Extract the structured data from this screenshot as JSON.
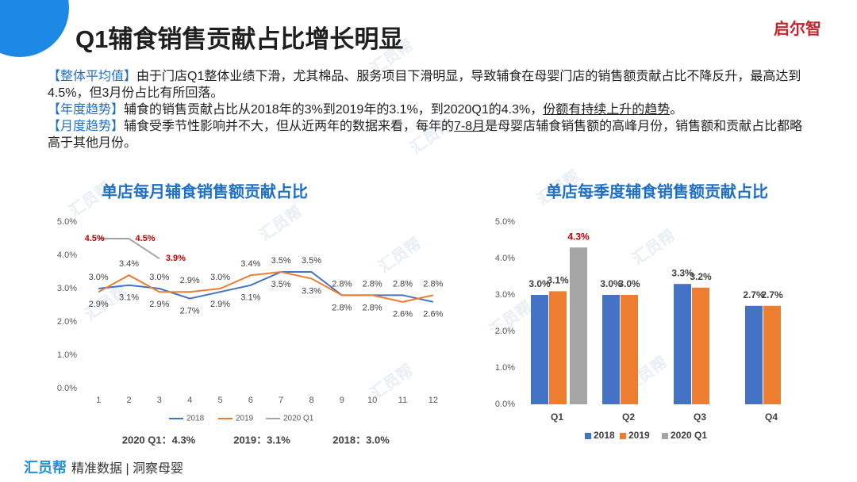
{
  "header": {
    "title": "Q1辅食销售贡献占比增长明显",
    "logo": "启尔智"
  },
  "paragraphs": [
    {
      "label": "【整体平均值】",
      "text": [
        "由于门店Q1整体业绩下滑，尤其棉品、服务项目下滑明显，导致辅食在母婴门店的销售额贡献占比不降反升，最高达到4.5%，但3月份占比有所回落。"
      ]
    },
    {
      "label": "【年度趋势】",
      "text": [
        "辅食的销售贡献占比从2018年的3%到2019年的3.1%，到2020Q1的4.3%，",
        "份额有持续上升的趋势",
        "。"
      ]
    },
    {
      "label": "【月度趋势】",
      "text": [
        "辅食受季节性影响并不大，但从近两年的数据来看，每年的",
        "7-8月",
        "是母婴店辅食销售额的高峰月份，销售额和贡献占比都略高于其他月份。"
      ]
    }
  ],
  "watermark": "汇员帮",
  "footer": {
    "brand": "汇员帮",
    "slogan": "精准数据 | 洞察母婴"
  },
  "chart_data": [
    {
      "type": "line",
      "title": "单店每月辅食销售额贡献占比",
      "categories": [
        "1",
        "2",
        "3",
        "4",
        "5",
        "6",
        "7",
        "8",
        "9",
        "10",
        "11",
        "12"
      ],
      "series": [
        {
          "name": "2018",
          "color": "#4472c4",
          "label_color": "#404040",
          "values": [
            3.0,
            3.1,
            3.0,
            2.7,
            2.9,
            3.1,
            3.5,
            3.5,
            2.8,
            2.8,
            2.8,
            2.6
          ],
          "value_labels": [
            "3.0%",
            "3.1%",
            "3.0%",
            "2.7%",
            "2.9%",
            "3.1%",
            "3.5%",
            "3.5%",
            "2.8%",
            "2.8%",
            "2.8%",
            "2.6%"
          ]
        },
        {
          "name": "2019",
          "color": "#ed7d31",
          "label_color": "#404040",
          "values": [
            2.9,
            3.4,
            2.9,
            2.9,
            3.0,
            3.4,
            3.5,
            3.3,
            2.8,
            2.8,
            2.6,
            2.8
          ],
          "value_labels": [
            "2.9%",
            "3.4%",
            "2.9%",
            "2.9%",
            "3.0%",
            "3.4%",
            "3.5%",
            "3.3%",
            "2.8%",
            "2.8%",
            "2.6%",
            "2.8%"
          ]
        },
        {
          "name": "2020 Q1",
          "color": "#a5a5a5",
          "label_color": "#c00000",
          "values": [
            4.5,
            4.5,
            3.9,
            null,
            null,
            null,
            null,
            null,
            null,
            null,
            null,
            null
          ],
          "value_labels": [
            "4.5%",
            "4.5%",
            "3.9%",
            null,
            null,
            null,
            null,
            null,
            null,
            null,
            null,
            null
          ]
        }
      ],
      "ylim": [
        0,
        5
      ],
      "yticks": [
        {
          "value": 0,
          "label": "0.0%"
        },
        {
          "value": 1,
          "label": "1.0%"
        },
        {
          "value": 2,
          "label": "2.0%"
        },
        {
          "value": 3,
          "label": "3.0%"
        },
        {
          "value": 4,
          "label": "4.0%"
        },
        {
          "value": 5,
          "label": "5.0%"
        }
      ],
      "grid": false,
      "legend": "bottom",
      "annotations": [
        "2020 Q1：4.3%",
        "2019：3.1%",
        "2018：3.0%"
      ]
    },
    {
      "type": "bar",
      "title": "单店每季度辅食销售额贡献占比",
      "categories": [
        "Q1",
        "Q2",
        "Q3",
        "Q4"
      ],
      "series": [
        {
          "name": "2018",
          "color": "#4472c4",
          "label_color": "#404040",
          "values": [
            3.0,
            3.0,
            3.3,
            2.7
          ],
          "value_labels": [
            "3.0%",
            "3.0%",
            "3.3%",
            "2.7%"
          ]
        },
        {
          "name": "2019",
          "color": "#ed7d31",
          "label_color": "#404040",
          "values": [
            3.1,
            3.0,
            3.2,
            2.7
          ],
          "value_labels": [
            "3.1%",
            "3.0%",
            "3.2%",
            "2.7%"
          ]
        },
        {
          "name": "2020 Q1",
          "color": "#a5a5a5",
          "label_color": "#c00000",
          "values": [
            4.3,
            null,
            null,
            null
          ],
          "value_labels": [
            "4.3%",
            null,
            null,
            null
          ]
        }
      ],
      "ylim": [
        0,
        5
      ],
      "yticks": [
        {
          "value": 0,
          "label": "0.0%"
        },
        {
          "value": 1,
          "label": "1.0%"
        },
        {
          "value": 2,
          "label": "2.0%"
        },
        {
          "value": 3,
          "label": "3.0%"
        },
        {
          "value": 4,
          "label": "4.0%"
        },
        {
          "value": 5,
          "label": "5.0%"
        }
      ],
      "grid": false,
      "legend": "bottom"
    }
  ]
}
